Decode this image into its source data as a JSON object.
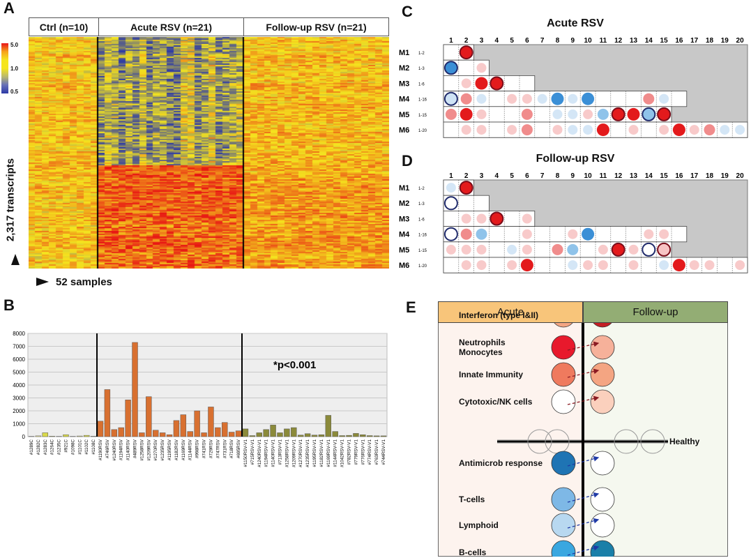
{
  "panel_labels": {
    "a": "A",
    "b": "B",
    "c": "C",
    "d": "D",
    "e": "E"
  },
  "panel_a": {
    "groups": [
      {
        "label": "Ctrl (n=10)",
        "color": "#9dc3e6"
      },
      {
        "label": "Acute RSV (n=21)",
        "color": "#ffc66d"
      },
      {
        "label": "Follow-up RSV (n=21)",
        "color": "#8aa26a"
      }
    ],
    "legend_ticks": [
      "5.0",
      "1.0",
      "0.5"
    ],
    "y_label": "2,317 transcripts",
    "x_label": "52 samples"
  },
  "chart_data": {
    "type": "bar",
    "ylim": [
      0,
      8000
    ],
    "y_ticks": [
      "0",
      "1000",
      "2000",
      "3000",
      "4000",
      "5000",
      "6000",
      "7000",
      "8000"
    ],
    "annotation": "*p<0.001",
    "categories": [
      "#1289C",
      "#1282C",
      "#1283C",
      "#1264C",
      "#1235C",
      "#921C",
      "#1098C",
      "#1101C",
      "#1102C",
      "#1108C",
      "#1190RSV",
      "#746RSV",
      "#1240RSV",
      "#1194RSV",
      "#1140RSV",
      "#489RSV",
      "#1258RSV",
      "#1209RSV",
      "#1270RSV",
      "#1235RSV",
      "#1195RSV",
      "#1182RSV",
      "#1169RSV",
      "#1144RSV",
      "#998RSV",
      "#741RSV",
      "#729RSV",
      "#747RSV",
      "#731RSV",
      "#718RSV",
      "#695RSV",
      "#1150RSV-V1",
      "#715RSV-V1",
      "#1240RSV-V1",
      "#1194RSV-V1",
      "#1140RSV-V1",
      "#713RSV-V1",
      "#1258RSV-V1",
      "#1209RSV-V1",
      "#1270RSV-V1",
      "#1235RSV-V1",
      "#1195RSV-V1",
      "#1182RSV-V1",
      "#1169RSV-V1",
      "#1144RSV-V1",
      "#1042RSV-V1",
      "#782RSV-V1",
      "#779RSV-V1",
      "#776RSV-V1",
      "#774RSV-V1",
      "#763RSV-V1",
      "#744RSV-V1"
    ],
    "series": [
      {
        "values": [
          20,
          60,
          300,
          40,
          20,
          150,
          20,
          50,
          100,
          30,
          1200,
          3650,
          550,
          700,
          2850,
          7300,
          300,
          3100,
          500,
          300,
          150,
          1250,
          1700,
          400,
          2000,
          300,
          2300,
          700,
          1100,
          350,
          450,
          600,
          80,
          300,
          550,
          900,
          300,
          600,
          700,
          120,
          230,
          120,
          150,
          1650,
          400,
          80,
          100,
          250,
          150,
          80,
          60,
          60
        ],
        "colors": [
          "#f7f3a0",
          "#f7f3a0",
          "#d9d94a",
          "#f7f3a0",
          "#f7f3a0",
          "#d9d94a",
          "#f7f3a0",
          "#f7f3a0",
          "#d9d94a",
          "#f7f3a0",
          "#d87030",
          "#d87030",
          "#d87030",
          "#d87030",
          "#d87030",
          "#d87030",
          "#d87030",
          "#d87030",
          "#d87030",
          "#d87030",
          "#d87030",
          "#d87030",
          "#d87030",
          "#d87030",
          "#d87030",
          "#d87030",
          "#d87030",
          "#d87030",
          "#d87030",
          "#d87030",
          "#d87030",
          "#8b8a3a",
          "#8b8a3a",
          "#8b8a3a",
          "#8b8a3a",
          "#8b8a3a",
          "#8b8a3a",
          "#8b8a3a",
          "#8b8a3a",
          "#8b8a3a",
          "#8b8a3a",
          "#8b8a3a",
          "#8b8a3a",
          "#8b8a3a",
          "#8b8a3a",
          "#8b8a3a",
          "#8b8a3a",
          "#8b8a3a",
          "#8b8a3a",
          "#8b8a3a",
          "#8b8a3a",
          "#8b8a3a"
        ]
      }
    ]
  },
  "panel_c": {
    "title": "Acute RSV"
  },
  "panel_d": {
    "title": "Follow-up RSV"
  },
  "module_grid": {
    "columns": [
      "1",
      "2",
      "3",
      "4",
      "5",
      "6",
      "7",
      "8",
      "9",
      "10",
      "11",
      "12",
      "13",
      "14",
      "15",
      "16",
      "17",
      "18",
      "19",
      "20"
    ],
    "rows": [
      {
        "label": "M1",
        "range": "1-2",
        "ncells": 2
      },
      {
        "label": "M2",
        "range": "1-3",
        "ncells": 3
      },
      {
        "label": "M3",
        "range": "1-6",
        "ncells": 6
      },
      {
        "label": "M4",
        "range": "1-16",
        "ncells": 16
      },
      {
        "label": "M5",
        "range": "1-15",
        "ncells": 15
      },
      {
        "label": "M6",
        "range": "1-20",
        "ncells": 20
      }
    ]
  },
  "modules_acute": [
    [
      "0",
      "r3o"
    ],
    [
      "b3o",
      "0",
      "r1"
    ],
    [
      "0",
      "r1",
      "r3",
      "r3o",
      "0",
      "0"
    ],
    [
      "b1o",
      "r2",
      "b1",
      "0",
      "r1",
      "r1",
      "b1",
      "b3",
      "b1",
      "b3",
      "0",
      "0",
      "0",
      "r2",
      "b1",
      "0"
    ],
    [
      "r2",
      "r3",
      "r1",
      "0",
      "0",
      "r2",
      "0",
      "b1",
      "b1",
      "r1",
      "b2",
      "r3o",
      "r3",
      "b2o",
      "r3o"
    ],
    [
      "0",
      "r1",
      "r1",
      "0",
      "r1",
      "r2",
      "0",
      "r1",
      "b1",
      "b1",
      "r3",
      "0",
      "r1",
      "0",
      "r1",
      "r3",
      "r1",
      "r2",
      "b1",
      "b1"
    ]
  ],
  "modules_followup": [
    [
      "b1",
      "r3o"
    ],
    [
      "wo",
      "0",
      "0"
    ],
    [
      "0",
      "r1",
      "r1",
      "r3o",
      "0",
      "r1"
    ],
    [
      "wo",
      "r2",
      "b2",
      "0",
      "0",
      "r1",
      "0",
      "0",
      "r1",
      "b3",
      "0",
      "0",
      "0",
      "r1",
      "r1",
      "0"
    ],
    [
      "r1",
      "r1",
      "r1",
      "0",
      "b1",
      "r1",
      "0",
      "r2",
      "b2",
      "0",
      "r1",
      "r3o",
      "r1",
      "wo",
      "r1o"
    ],
    [
      "0",
      "r1",
      "r1",
      "0",
      "r1",
      "r3",
      "0",
      "0",
      "b1",
      "r1",
      "r1",
      "0",
      "r1",
      "0",
      "b1",
      "r3",
      "r1",
      "r1",
      "0",
      "r1"
    ]
  ],
  "panel_e": {
    "acute_header": "Acute",
    "followup_header": "Follow-up",
    "acute_color": "#f8c57a",
    "followup_color": "#93ad74",
    "healthy_label": "Healthy",
    "rows": [
      {
        "label": "Interferon (type I&II)",
        "acute": "#f4a582",
        "followup": "#c41e24"
      },
      {
        "label": "Neutrophils\nMonocytes",
        "acute": "#e8192c",
        "followup": "#f6b19a"
      },
      {
        "label": "Innate Immunity",
        "acute": "#ef7a5e",
        "followup": "#f4a582"
      },
      {
        "label": "Cytotoxic/NK cells",
        "acute": "#ffffff",
        "followup": "#fbd0bd"
      },
      {
        "label": "Antimicrob response",
        "acute": "#1f74b4",
        "followup": "#ffffff"
      },
      {
        "label": "T-cells",
        "acute": "#7eb8e6",
        "followup": "#ffffff"
      },
      {
        "label": "Lymphoid",
        "acute": "#b8d8f0",
        "followup": "#ffffff"
      },
      {
        "label": "B-cells",
        "acute": "#3aa7e0",
        "followup": "#1a7fa8"
      }
    ]
  }
}
